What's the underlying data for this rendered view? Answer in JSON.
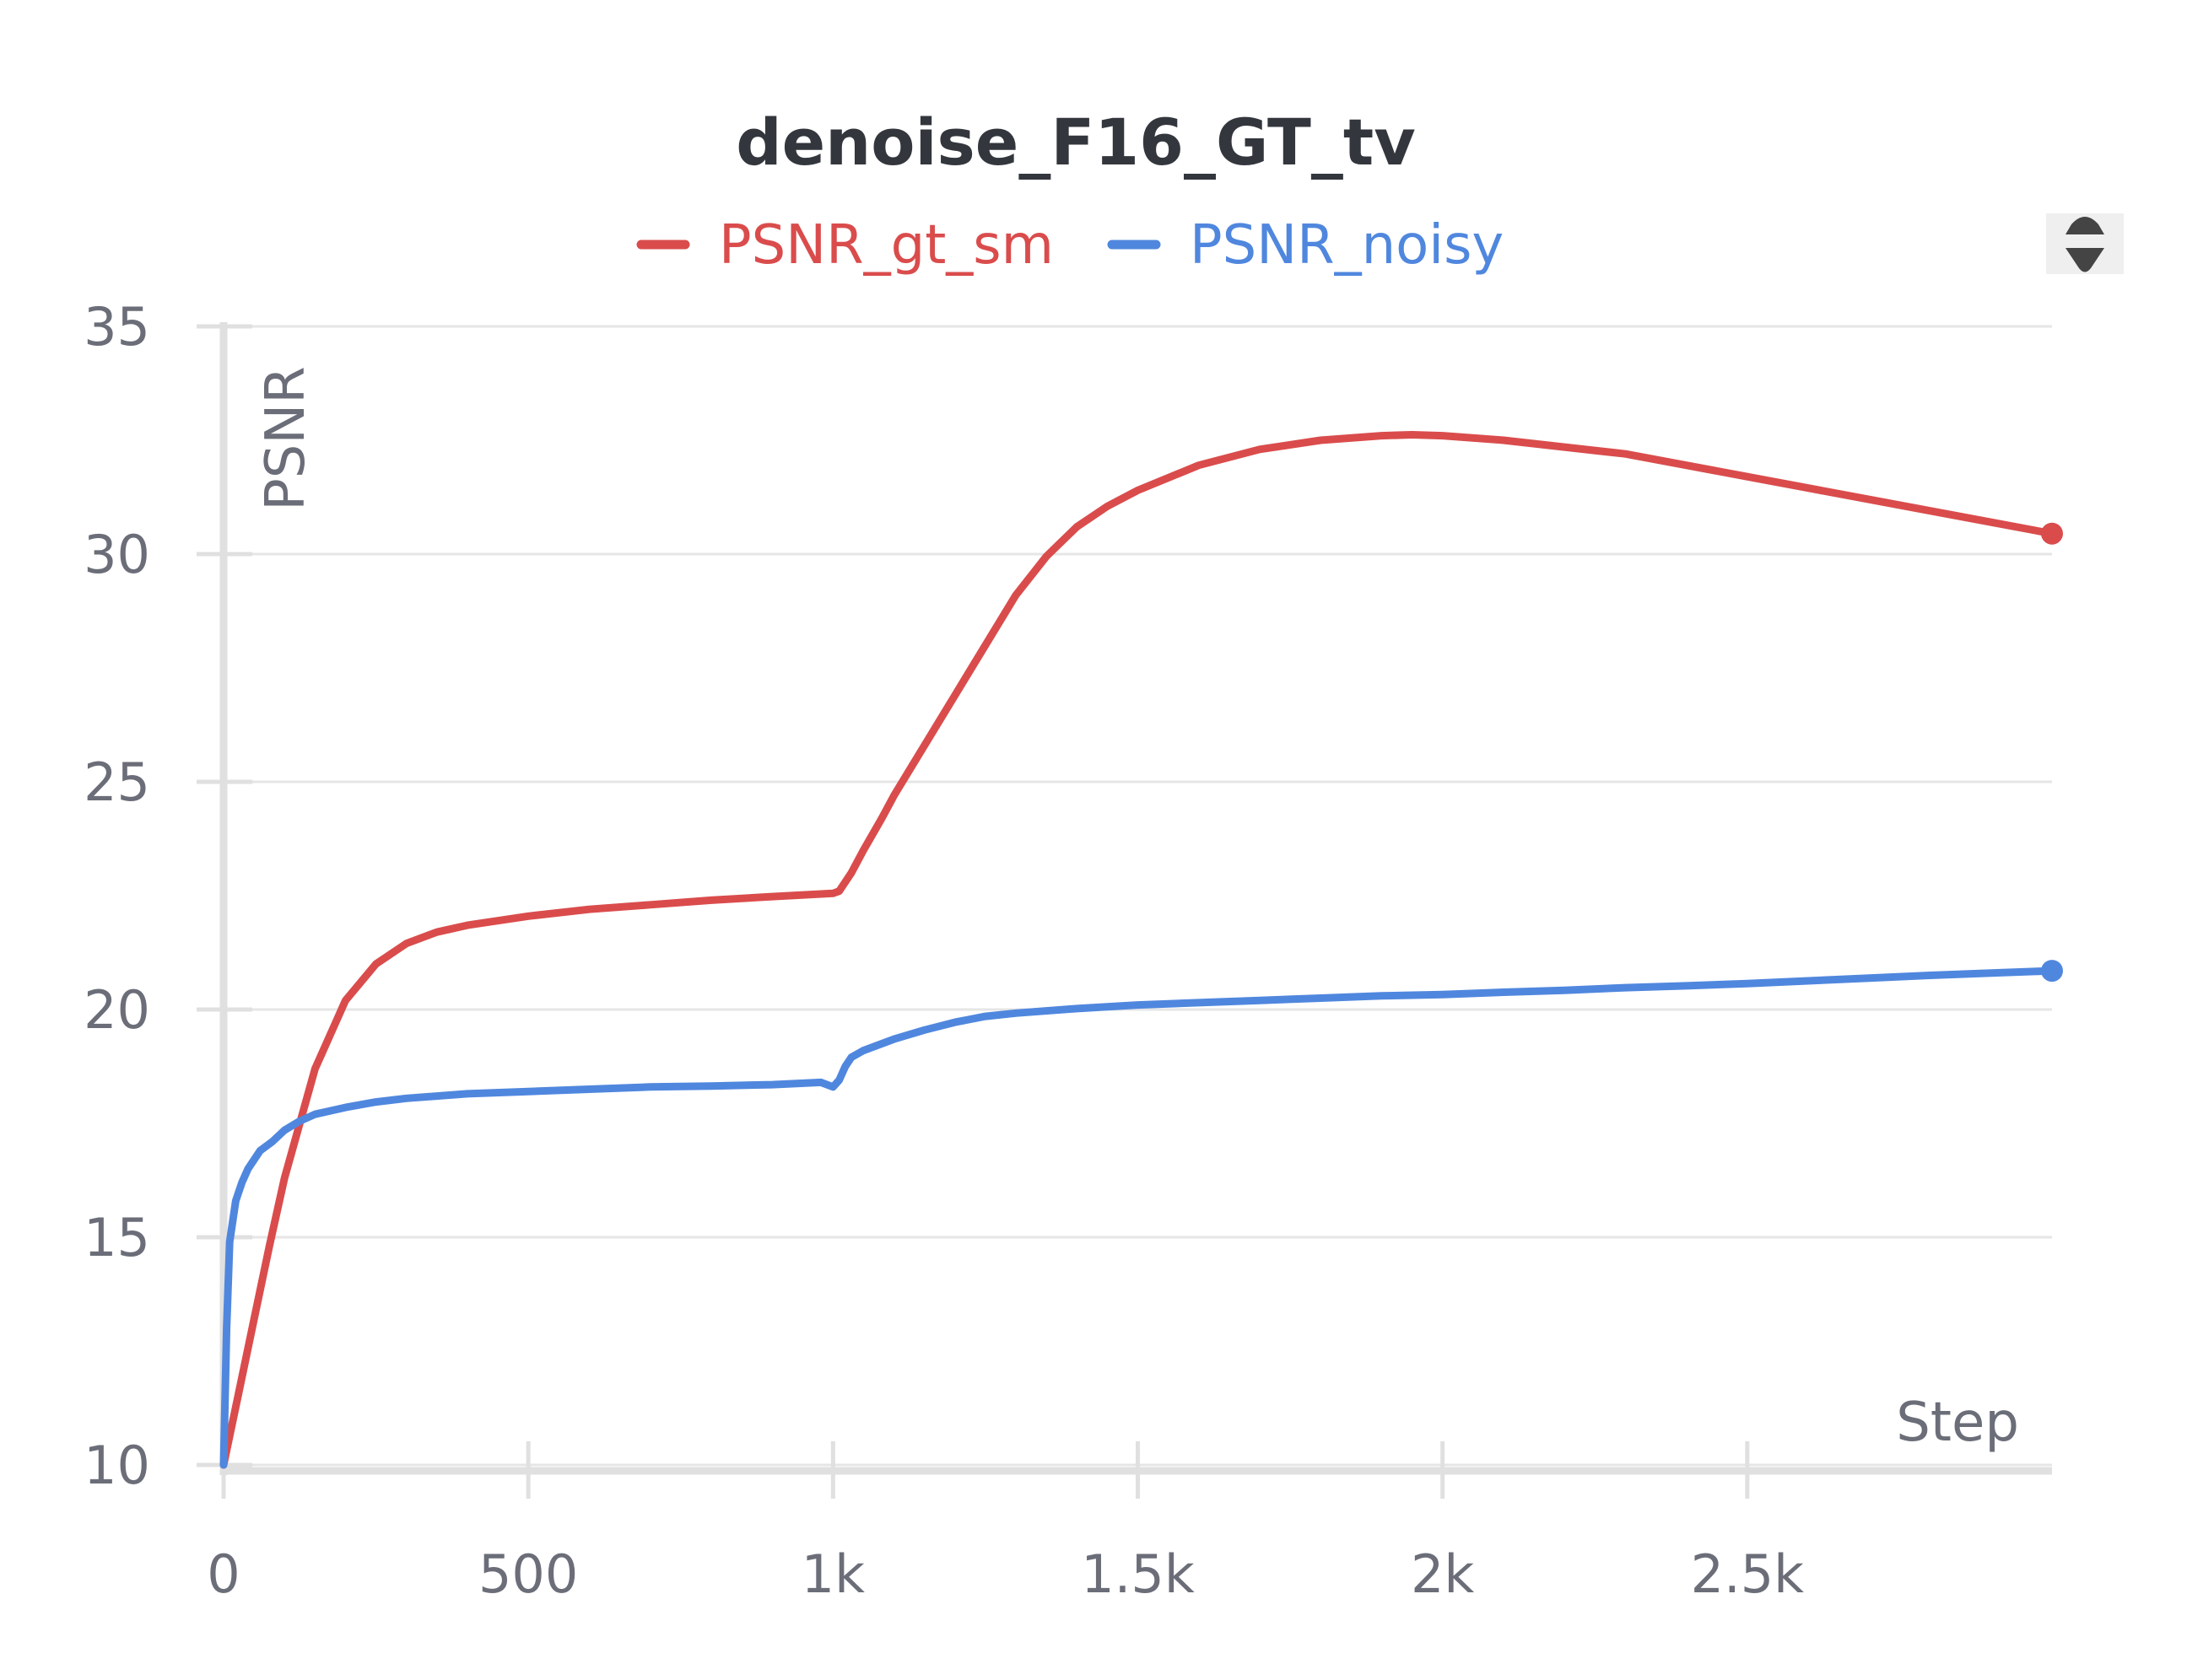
{
  "chart_data": {
    "type": "line",
    "title": "denoise_F16_GT_tv",
    "xlabel": "Step",
    "ylabel": "PSNR",
    "xlim": [
      0,
      3000
    ],
    "ylim": [
      10,
      35
    ],
    "x_ticks": [
      0,
      500,
      1000,
      1500,
      2000,
      2500
    ],
    "x_tick_labels": [
      "0",
      "500",
      "1k",
      "1.5k",
      "2k",
      "2.5k"
    ],
    "y_ticks": [
      10,
      15,
      20,
      25,
      30,
      35
    ],
    "y_tick_labels": [
      "10",
      "15",
      "20",
      "25",
      "30",
      "35"
    ],
    "grid": true,
    "legend_position": "top-center",
    "series": [
      {
        "name": "PSNR_gt_sm",
        "color": "#da4c4c",
        "x": [
          0,
          25,
          50,
          75,
          100,
          150,
          200,
          250,
          300,
          350,
          400,
          500,
          600,
          700,
          800,
          900,
          1000,
          1010,
          1030,
          1050,
          1080,
          1100,
          1150,
          1200,
          1250,
          1300,
          1350,
          1400,
          1450,
          1500,
          1600,
          1700,
          1800,
          1900,
          1950,
          2000,
          2100,
          2200,
          2300,
          2400,
          2500,
          2600,
          2700,
          2800,
          2900,
          3000
        ],
        "y": [
          10,
          11.6,
          13.2,
          14.8,
          16.3,
          18.7,
          20.2,
          21.0,
          21.45,
          21.7,
          21.85,
          22.05,
          22.2,
          22.3,
          22.4,
          22.48,
          22.55,
          22.6,
          23.0,
          23.5,
          24.2,
          24.7,
          25.8,
          26.9,
          28.0,
          29.1,
          29.95,
          30.6,
          31.05,
          31.4,
          31.95,
          32.3,
          32.5,
          32.6,
          32.62,
          32.6,
          32.5,
          32.35,
          32.2,
          31.95,
          31.7,
          31.45,
          31.2,
          30.95,
          30.7,
          30.45
        ]
      },
      {
        "name": "PSNR_noisy",
        "color": "#5087de",
        "x": [
          0,
          5,
          10,
          20,
          30,
          40,
          60,
          80,
          100,
          125,
          150,
          200,
          250,
          300,
          400,
          500,
          600,
          700,
          800,
          900,
          980,
          1000,
          1010,
          1020,
          1030,
          1050,
          1080,
          1100,
          1150,
          1200,
          1250,
          1300,
          1400,
          1500,
          1600,
          1700,
          1800,
          1900,
          2000,
          2100,
          2200,
          2300,
          2400,
          2500,
          2600,
          2700,
          2800,
          2900,
          3000
        ],
        "y": [
          10,
          13.0,
          14.9,
          15.8,
          16.2,
          16.5,
          16.9,
          17.1,
          17.35,
          17.55,
          17.7,
          17.85,
          17.97,
          18.05,
          18.15,
          18.2,
          18.25,
          18.3,
          18.32,
          18.35,
          18.4,
          18.3,
          18.45,
          18.75,
          18.95,
          19.1,
          19.25,
          19.35,
          19.55,
          19.72,
          19.85,
          19.92,
          20.02,
          20.1,
          20.15,
          20.2,
          20.25,
          20.3,
          20.33,
          20.38,
          20.42,
          20.48,
          20.52,
          20.57,
          20.63,
          20.69,
          20.75,
          20.8,
          20.85
        ]
      }
    ]
  }
}
